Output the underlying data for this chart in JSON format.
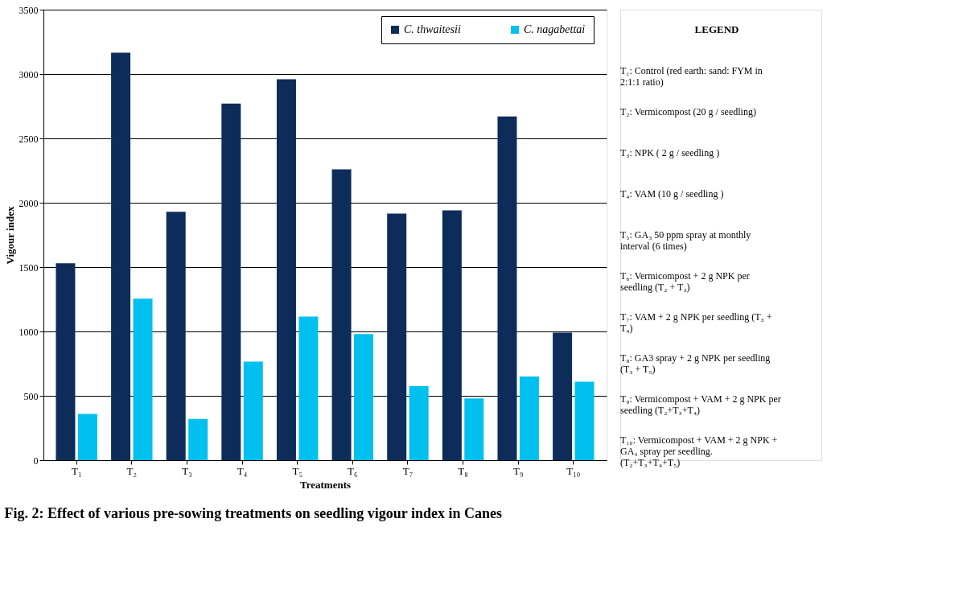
{
  "chart_data": {
    "type": "bar",
    "title": "Fig. 2: Effect of various pre-sowing treatments on seedling vigour index in Canes",
    "xlabel": "Treatments",
    "ylabel": "Vigour index",
    "categories": [
      "T₁",
      "T₂",
      "T₃",
      "T₄",
      "T₅",
      "T₆",
      "T₇",
      "T₈",
      "T₉",
      "T₁₀"
    ],
    "series": [
      {
        "name": "C. thwaitesii",
        "color": "#0d2c5a",
        "values": [
          1530,
          3165,
          1930,
          2770,
          2960,
          2260,
          1915,
          1940,
          2670,
          990
        ]
      },
      {
        "name": "C. nagabettai",
        "color": "#00c0f0",
        "values": [
          360,
          1255,
          320,
          765,
          1115,
          980,
          575,
          480,
          650,
          610
        ]
      }
    ],
    "ylim": [
      0,
      3500
    ],
    "yticks": [
      0,
      500,
      1000,
      1500,
      2000,
      2500,
      3000,
      3500
    ],
    "grid": "y",
    "legend": "top right",
    "annotations": [
      "LEGEND",
      "T₁: Control (red earth: sand: FYM in 2:1:1 ratio)",
      "T₂: Vermicompost (20 g / seedling)",
      "T₃: NPK ( 2 g / seedling )",
      "T₄: VAM (10 g / seedling )",
      "T₅: GA₃ 50 ppm spray at monthly interval (6 times)",
      "T₆: Vermicompost + 2 g NPK per seedling (T₂ + T₃)",
      "T₇: VAM + 2 g NPK per seedling (T₃ + T₄)",
      "T₈: GA3 spray + 2 g NPK per seedling (T₃ + T₅)",
      "T₉: Vermicompost + VAM + 2 g NPK per seedling (T₂+T₃+T₄)",
      "T₁₀: Vermicompost + VAM + 2 g NPK + GA₃ spray per seedling. (T₂+T₃+T₄+T₅)"
    ]
  }
}
